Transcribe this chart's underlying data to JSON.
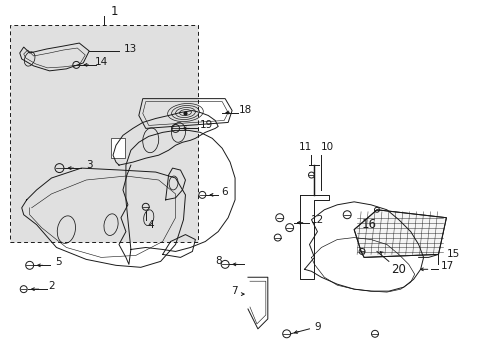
{
  "background": "#ffffff",
  "box_bg": "#e0e0e0",
  "line_color": "#1a1a1a",
  "lw": 0.7,
  "figsize": [
    4.89,
    3.6
  ],
  "dpi": 100
}
